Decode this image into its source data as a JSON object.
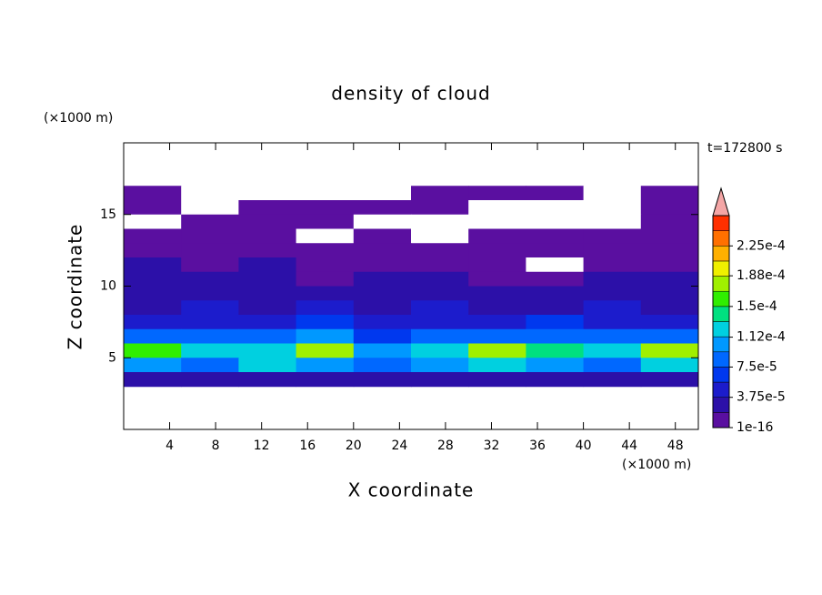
{
  "chart_data": {
    "type": "contour",
    "title": "density of cloud",
    "subtitle": "t=172800 s",
    "x_label": "X coordinate",
    "y_label": "Z coordinate",
    "x_unit": "(×1000 m)",
    "y_unit": "(×1000 m)",
    "xlim": [
      0,
      50
    ],
    "ylim": [
      0,
      20
    ],
    "xticks": [
      4,
      8,
      12,
      16,
      20,
      24,
      28,
      32,
      36,
      40,
      44,
      48
    ],
    "yticks": [
      5,
      10,
      15
    ],
    "x": [
      2.5,
      7.5,
      12.5,
      17.5,
      22.5,
      27.5,
      32.5,
      37.5,
      42.5,
      47.5
    ],
    "z": [
      16.5,
      15.5,
      14.5,
      13.5,
      12.5,
      11.5,
      10.5,
      9.5,
      8.5,
      7.5,
      6.5,
      5.5,
      4.5,
      3.5
    ],
    "values": [
      [
        1e-05,
        0,
        0,
        0,
        0,
        1e-05,
        1e-05,
        1e-05,
        0,
        1e-05
      ],
      [
        1e-05,
        0,
        1e-05,
        1e-05,
        1e-05,
        1e-05,
        0,
        0,
        0,
        1e-05
      ],
      [
        0,
        1e-05,
        1e-05,
        1e-05,
        0,
        0,
        0,
        0,
        0,
        1e-05
      ],
      [
        1e-05,
        1e-05,
        1e-05,
        0,
        1e-05,
        0,
        1e-05,
        1e-05,
        1e-05,
        1e-05
      ],
      [
        1e-05,
        1e-05,
        1e-05,
        1e-05,
        1e-05,
        1e-05,
        1e-05,
        1e-05,
        1e-05,
        1e-05
      ],
      [
        2e-05,
        1e-05,
        2e-05,
        1e-05,
        1e-05,
        1e-05,
        1e-05,
        0,
        1e-05,
        1e-05
      ],
      [
        2e-05,
        2e-05,
        2e-05,
        1e-05,
        2e-05,
        2e-05,
        1e-05,
        1e-05,
        2e-05,
        2e-05
      ],
      [
        3e-05,
        2e-05,
        3e-05,
        2e-05,
        3e-05,
        3e-05,
        2e-05,
        3e-05,
        3e-05,
        2e-05
      ],
      [
        3e-05,
        4e-05,
        3e-05,
        4e-05,
        3e-05,
        4e-05,
        3e-05,
        3e-05,
        4e-05,
        3e-05
      ],
      [
        4e-05,
        5e-05,
        5e-05,
        6e-05,
        4e-05,
        5e-05,
        5e-05,
        6e-05,
        5e-05,
        5e-05
      ],
      [
        8e-05,
        9e-05,
        8e-05,
        0.0001,
        7e-05,
        9e-05,
        8e-05,
        9e-05,
        9e-05,
        8e-05
      ],
      [
        0.00016,
        0.00013,
        0.00012,
        0.00017,
        0.00011,
        0.00012,
        0.00018,
        0.00014,
        0.00013,
        0.00017
      ],
      [
        0.00011,
        9e-05,
        0.00012,
        0.0001,
        8e-05,
        0.00011,
        0.00012,
        0.0001,
        9e-05,
        0.00012
      ],
      [
        2e-05,
        3e-05,
        2e-05,
        3e-05,
        2e-05,
        2e-05,
        3e-05,
        2e-05,
        3e-05,
        2e-05
      ]
    ],
    "colorbar": {
      "lim": [
        1e-16,
        0.0002625
      ],
      "ticks": [
        1e-16,
        {
          "value": 3.75e-05,
          "label": "3.75e-5"
        },
        {
          "value": 7.5e-05,
          "label": "7.5e-5"
        },
        {
          "value": 0.000112,
          "label": "1.12e-4"
        },
        {
          "value": 0.00015,
          "label": "1.5e-4"
        },
        {
          "value": 0.000188,
          "label": "1.88e-4"
        },
        {
          "value": 0.000225,
          "label": "2.25e-4"
        }
      ],
      "colors": [
        "#5a0fa0",
        "#2c10a8",
        "#1c1ccc",
        "#0038ee",
        "#0068ff",
        "#0098ff",
        "#00d0e0",
        "#00e080",
        "#30ee00",
        "#a0f000",
        "#f0f000",
        "#ffb000",
        "#ff7000",
        "#ff3000"
      ],
      "extend_color": "#f4a6a6"
    }
  }
}
